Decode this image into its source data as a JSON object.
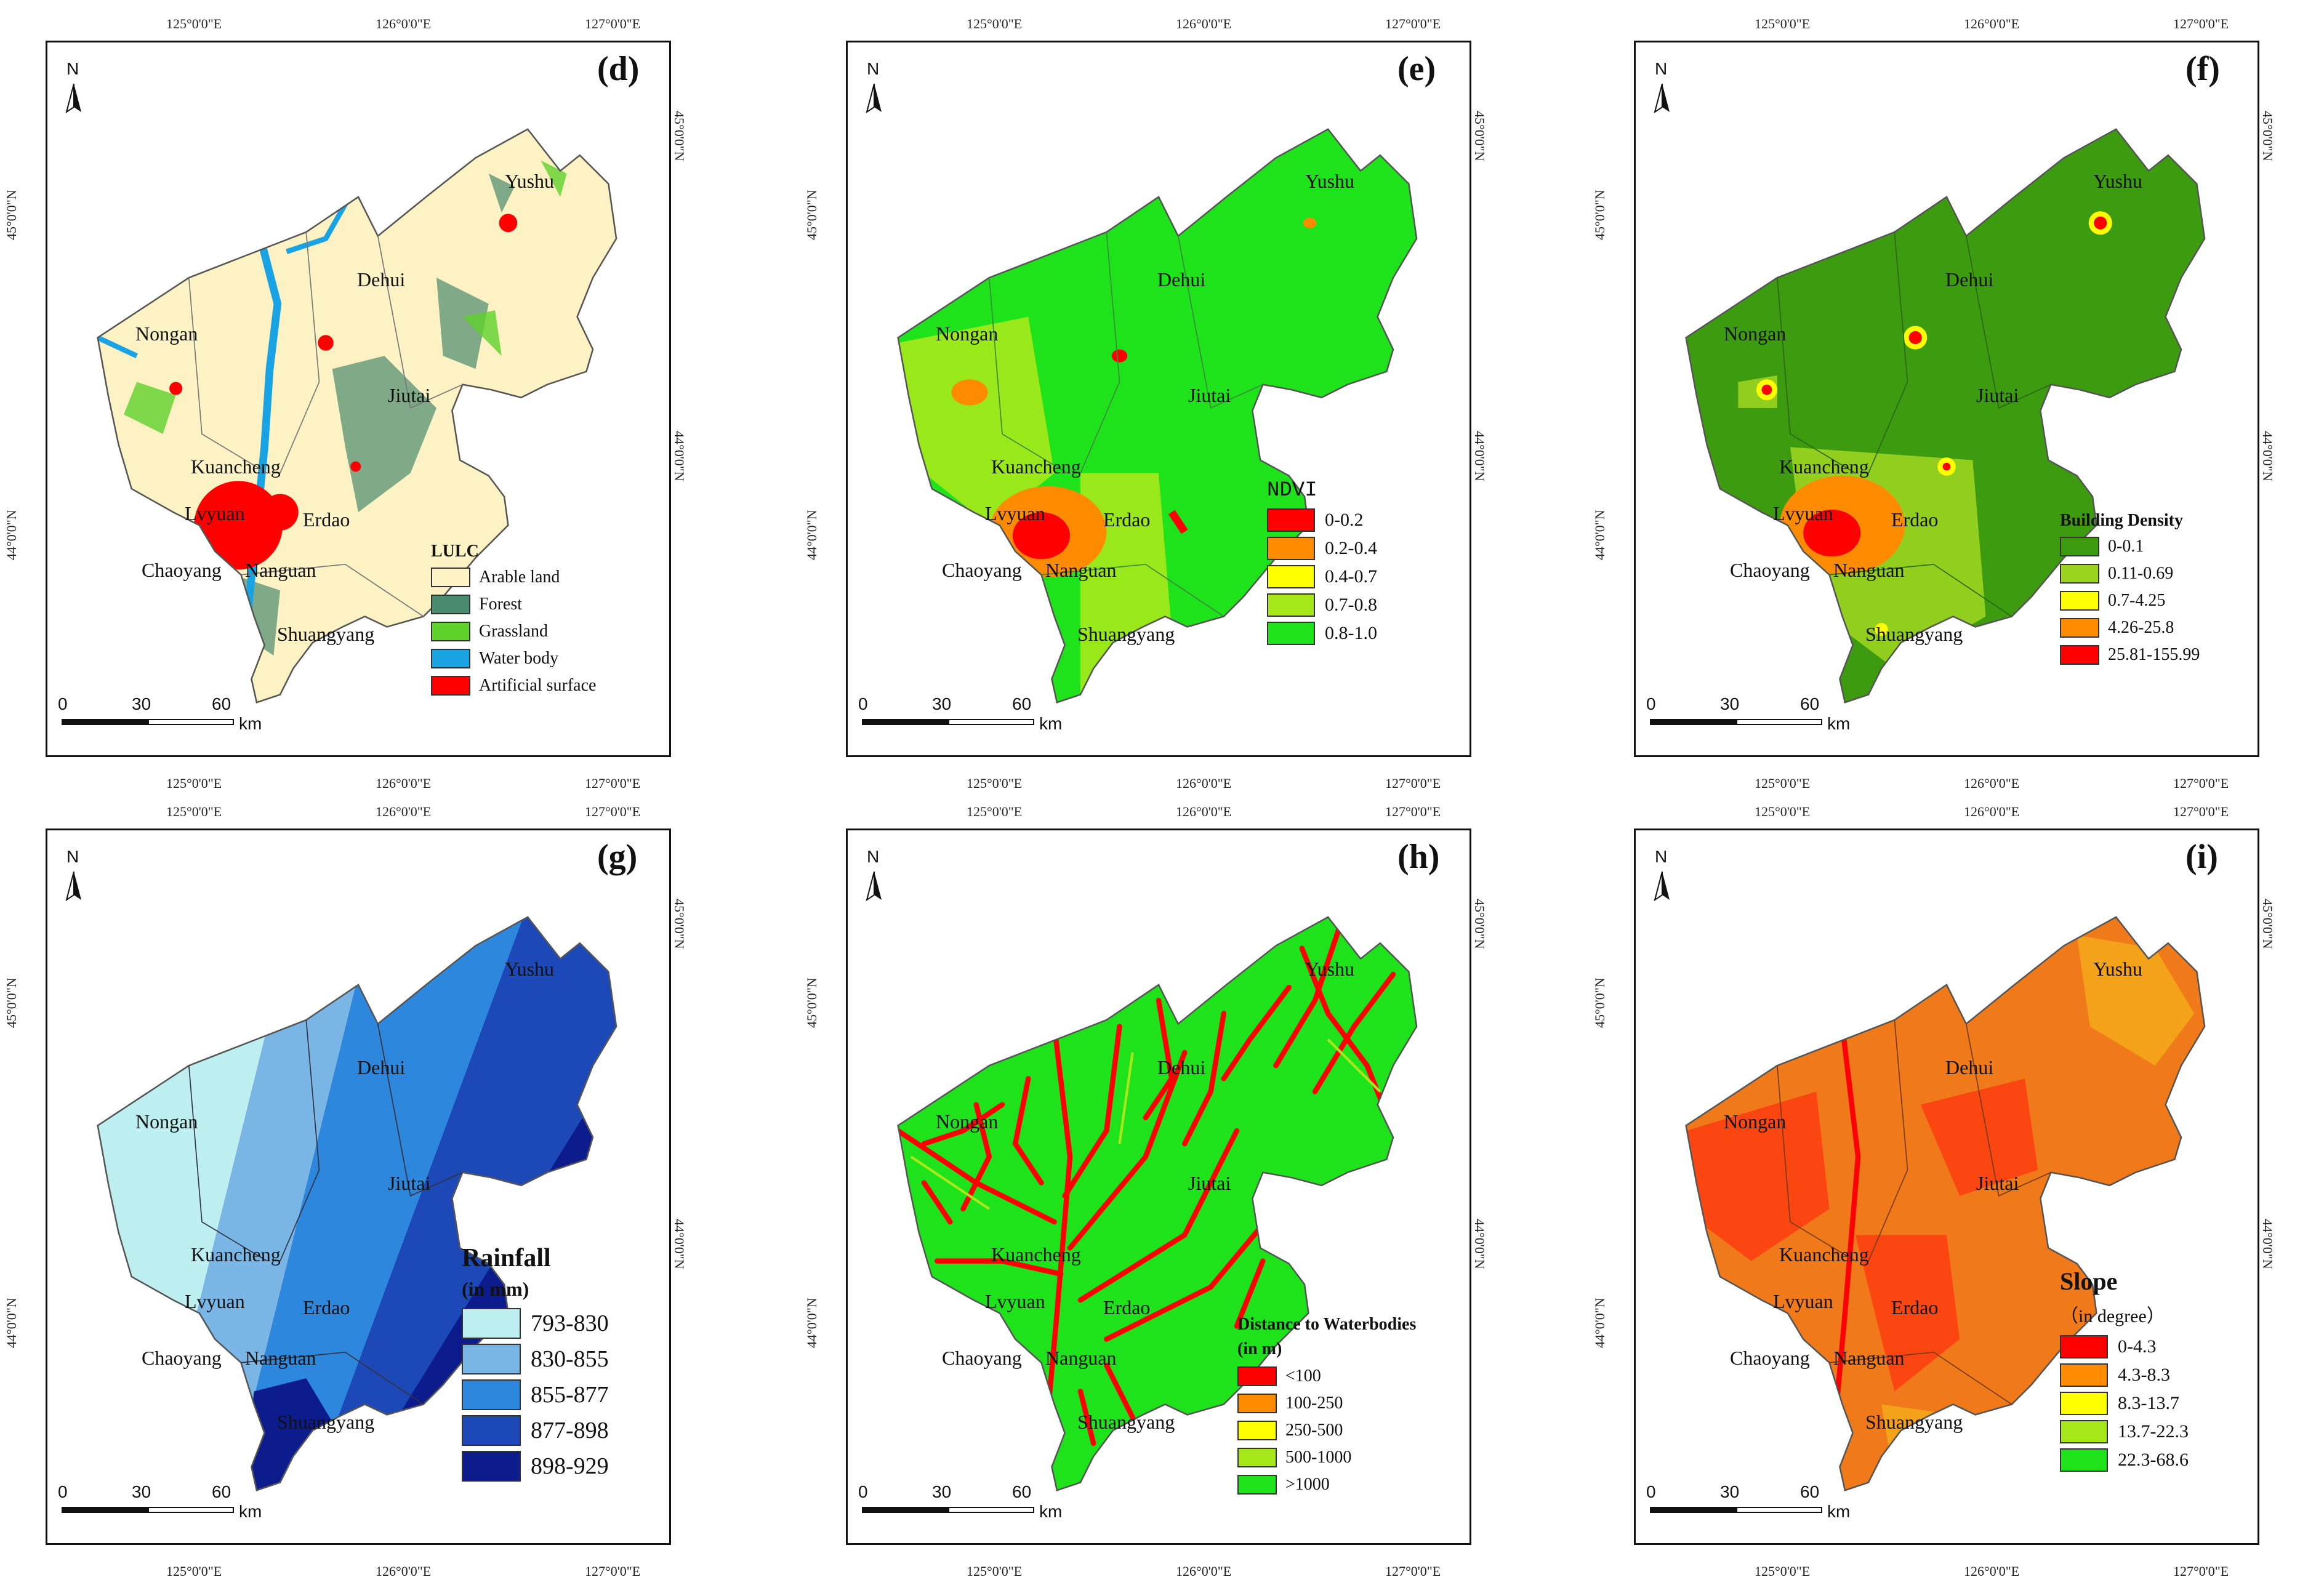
{
  "coords": {
    "lon": [
      "125°0'0\"E",
      "126°0'0\"E",
      "127°0'0\"E"
    ],
    "lat": [
      "45°0'0\"N",
      "44°0'0\"N"
    ]
  },
  "north_label": "N",
  "scale": {
    "t0": "0",
    "t1": "30",
    "t2": "60",
    "unit": "km"
  },
  "places": {
    "yushu": "Yushu",
    "dehui": "Dehui",
    "nongan": "Nongan",
    "jiutai": "Jiutai",
    "kuancheng": "Kuancheng",
    "lvyuan": "Lvyuan",
    "erdao": "Erdao",
    "chaoyang": "Chaoyang",
    "nanguan": "Nanguan",
    "shuangyang": "Shuangyang"
  },
  "colors": {
    "arable": "#fdf2c4",
    "forest": "#4a8a6e",
    "grass": "#5ed12a",
    "water": "#1aa3e3",
    "artificial": "#ff0000",
    "red": "#ff0000",
    "orange": "#ff8c00",
    "yellow": "#ffff00",
    "lime": "#a6e81a",
    "green": "#1ee31a",
    "bd0": "#3d9b0f",
    "bd1": "#9bd41f",
    "r0": "#bdeef0",
    "r1": "#79b6e6",
    "r2": "#2d87dd",
    "r3": "#1d48b8",
    "r4": "#0c1c8c",
    "outline": "#555555"
  },
  "panels": {
    "d": {
      "letter": "(d)",
      "legend_title": "LULC",
      "legend": [
        "Arable land",
        "Forest",
        "Grassland",
        "Water body",
        "Artificial surface"
      ]
    },
    "e": {
      "letter": "(e)",
      "legend_title": "NDVI",
      "legend": [
        "0-0.2",
        "0.2-0.4",
        "0.4-0.7",
        "0.7-0.8",
        "0.8-1.0"
      ]
    },
    "f": {
      "letter": "(f)",
      "legend_title": "Building Density",
      "legend": [
        "0-0.1",
        "0.11-0.69",
        "0.7-4.25",
        "4.26-25.8",
        "25.81-155.99"
      ]
    },
    "g": {
      "letter": "(g)",
      "legend_title": "Rainfall",
      "legend_subtitle": "(in mm)",
      "legend": [
        "793-830",
        "830-855",
        "855-877",
        "877-898",
        "898-929"
      ]
    },
    "h": {
      "letter": "(h)",
      "legend_title": "Distance to Waterbodies",
      "legend_subtitle": "(in m)",
      "legend": [
        "<100",
        "100-250",
        "250-500",
        "500-1000",
        ">1000"
      ]
    },
    "i": {
      "letter": "(i)",
      "legend_title": "Slope",
      "legend_subtitle": "（in degree）",
      "legend": [
        "0-4.3",
        "4.3-8.3",
        "8.3-13.7",
        "13.7-22.3",
        "22.3-68.6"
      ]
    }
  }
}
